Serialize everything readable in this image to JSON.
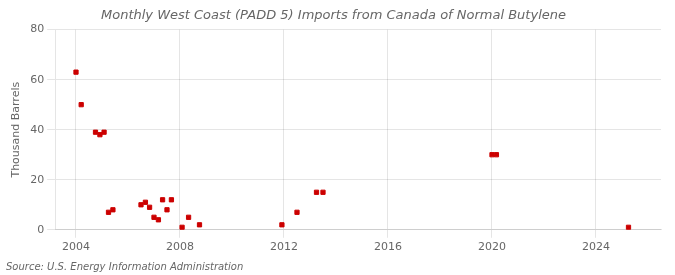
{
  "chart_data": {
    "type": "scatter",
    "title": "Monthly West Coast (PADD 5) Imports from Canada of Normal Butylene",
    "ylabel": "Thousand Barrels",
    "annotations": [
      "Source: U.S. Energy Information Administration"
    ],
    "x": [
      2004.0,
      2004.2,
      2004.75,
      2004.92,
      2005.08,
      2005.25,
      2005.42,
      2006.5,
      2006.67,
      2006.83,
      2007.0,
      2007.17,
      2007.33,
      2007.5,
      2007.67,
      2008.08,
      2008.33,
      2008.75,
      2011.92,
      2012.5,
      2013.25,
      2013.5,
      2020.0,
      2020.17,
      2025.25
    ],
    "values": [
      63,
      50,
      39,
      38,
      39,
      7,
      8,
      10,
      11,
      9,
      5,
      4,
      12,
      8,
      12,
      1,
      5,
      2,
      2,
      7,
      15,
      15,
      30,
      30,
      1
    ],
    "color": "#cc0000",
    "marker": "square",
    "xlim": [
      2003.2,
      2026.5
    ],
    "ylim": [
      0,
      80
    ],
    "xticks": [
      2004,
      2008,
      2012,
      2016,
      2020,
      2024
    ],
    "yticks": [
      0,
      20,
      40,
      60,
      80
    ],
    "grid": true
  }
}
